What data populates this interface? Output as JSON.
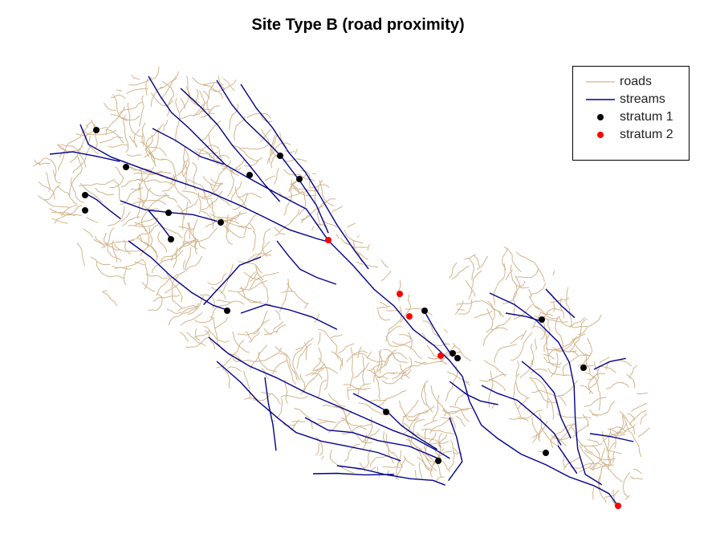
{
  "title": "Site Type B (road proximity)",
  "colors": {
    "roads": "#d2b48c",
    "streams": "#00008b",
    "stratum_1": "#000000",
    "stratum_2": "#ff0000"
  },
  "legend": {
    "items": [
      {
        "label": "roads",
        "symbol": "line",
        "color": "#d2b48c"
      },
      {
        "label": "streams",
        "symbol": "line",
        "color": "#00008b"
      },
      {
        "label": "stratum 1",
        "symbol": "point",
        "color": "#000000"
      },
      {
        "label": "stratum 2",
        "symbol": "point",
        "color": "#ff0000"
      }
    ]
  },
  "layers": [
    "roads",
    "streams",
    "stratum 1",
    "stratum 2"
  ]
}
